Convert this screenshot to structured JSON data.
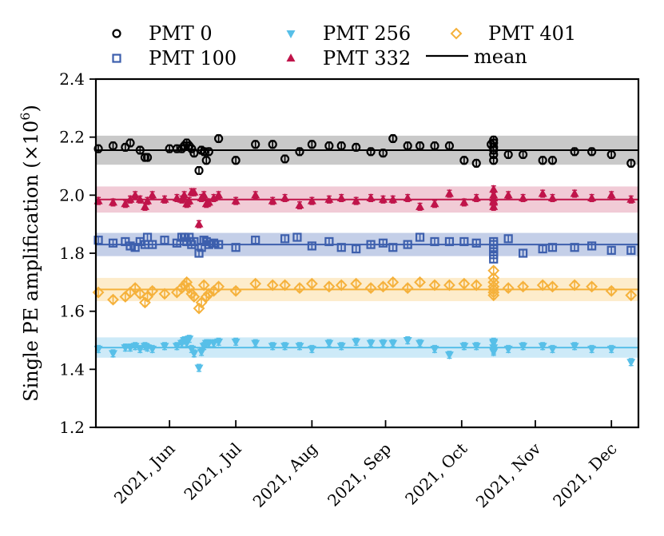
{
  "chart_data": {
    "type": "scatter",
    "ylabel_main": "Single PE amplification (×10",
    "ylabel_exp": "6",
    "ylabel_close": ")",
    "xlabel": "",
    "ylim": [
      1.2,
      2.4
    ],
    "yticks": [
      "1.2",
      "1.4",
      "1.6",
      "1.8",
      "2.0",
      "2.2",
      "2.4"
    ],
    "x_start": 0,
    "x_end": 221,
    "x_tick_positions": [
      30,
      57,
      88,
      118,
      149,
      179,
      210
    ],
    "x_tick_labels": [
      "2021, Jun",
      "2021, Jul",
      "2021, Aug",
      "2021, Sep",
      "2021, Oct",
      "2021, Nov",
      "2021, Dec"
    ],
    "legend_mean_label": "mean",
    "series": [
      {
        "name": "PMT 0",
        "marker": "circle",
        "color": "#000000",
        "band_color": "#c9c9c9",
        "mean": 2.155,
        "band": [
          2.105,
          2.205
        ],
        "err": 0.013,
        "days": [
          1,
          7,
          12,
          14,
          18,
          20,
          21,
          30,
          33,
          35,
          36,
          37,
          38,
          39,
          40,
          42,
          43,
          44,
          45,
          46,
          50,
          57,
          65,
          72,
          77,
          83,
          88,
          95,
          100,
          106,
          112,
          117,
          121,
          127,
          132,
          138,
          144,
          150,
          155,
          161,
          162,
          162,
          162,
          162,
          162,
          162,
          168,
          174,
          182,
          186,
          195,
          202,
          210,
          218
        ],
        "values": [
          2.16,
          2.17,
          2.165,
          2.18,
          2.155,
          2.13,
          2.13,
          2.16,
          2.16,
          2.16,
          2.17,
          2.18,
          2.17,
          2.16,
          2.145,
          2.085,
          2.155,
          2.15,
          2.12,
          2.15,
          2.195,
          2.12,
          2.175,
          2.175,
          2.125,
          2.15,
          2.175,
          2.17,
          2.17,
          2.165,
          2.15,
          2.145,
          2.195,
          2.17,
          2.17,
          2.17,
          2.17,
          2.12,
          2.11,
          2.175,
          2.19,
          2.18,
          2.165,
          2.155,
          2.14,
          2.12,
          2.14,
          2.14,
          2.12,
          2.12,
          2.15,
          2.15,
          2.14,
          2.11
        ]
      },
      {
        "name": "PMT 100",
        "marker": "square",
        "color": "#3d5fad",
        "band_color": "#c4cfe8",
        "mean": 1.83,
        "band": [
          1.79,
          1.87
        ],
        "err": 0.012,
        "days": [
          1,
          7,
          12,
          14,
          16,
          18,
          20,
          21,
          23,
          28,
          33,
          35,
          36,
          37,
          38,
          39,
          40,
          42,
          43,
          44,
          45,
          46,
          48,
          50,
          57,
          65,
          77,
          82,
          88,
          95,
          100,
          106,
          112,
          117,
          121,
          127,
          132,
          138,
          144,
          150,
          155,
          162,
          162,
          162,
          162,
          162,
          162,
          168,
          174,
          182,
          186,
          195,
          202,
          210,
          218
        ],
        "values": [
          1.845,
          1.835,
          1.84,
          1.825,
          1.82,
          1.84,
          1.83,
          1.855,
          1.83,
          1.845,
          1.835,
          1.855,
          1.855,
          1.84,
          1.855,
          1.83,
          1.84,
          1.8,
          1.82,
          1.845,
          1.84,
          1.83,
          1.835,
          1.83,
          1.82,
          1.845,
          1.85,
          1.855,
          1.825,
          1.84,
          1.82,
          1.815,
          1.83,
          1.835,
          1.82,
          1.83,
          1.855,
          1.84,
          1.84,
          1.84,
          1.835,
          1.84,
          1.83,
          1.815,
          1.805,
          1.795,
          1.78,
          1.85,
          1.8,
          1.815,
          1.82,
          1.82,
          1.825,
          1.81,
          1.81
        ]
      },
      {
        "name": "PMT 256",
        "marker": "triangle-down",
        "color": "#57bfe8",
        "band_color": "#cdeaf8",
        "mean": 1.475,
        "band": [
          1.44,
          1.51
        ],
        "err": 0.012,
        "days": [
          1,
          7,
          12,
          14,
          16,
          18,
          20,
          21,
          23,
          28,
          33,
          35,
          36,
          37,
          38,
          39,
          40,
          42,
          43,
          44,
          45,
          46,
          48,
          50,
          57,
          65,
          72,
          77,
          83,
          88,
          95,
          100,
          106,
          112,
          117,
          121,
          127,
          132,
          138,
          144,
          150,
          155,
          162,
          162,
          162,
          162,
          162,
          168,
          174,
          182,
          186,
          195,
          202,
          210,
          218
        ],
        "values": [
          1.47,
          1.455,
          1.475,
          1.475,
          1.48,
          1.47,
          1.48,
          1.475,
          1.47,
          1.48,
          1.48,
          1.49,
          1.5,
          1.49,
          1.505,
          1.47,
          1.455,
          1.405,
          1.46,
          1.48,
          1.49,
          1.49,
          1.49,
          1.495,
          1.495,
          1.49,
          1.48,
          1.48,
          1.48,
          1.47,
          1.49,
          1.48,
          1.495,
          1.49,
          1.49,
          1.49,
          1.5,
          1.49,
          1.47,
          1.45,
          1.48,
          1.48,
          1.495,
          1.49,
          1.475,
          1.465,
          1.46,
          1.47,
          1.48,
          1.48,
          1.47,
          1.48,
          1.47,
          1.47,
          1.425
        ]
      },
      {
        "name": "PMT 332",
        "marker": "triangle-up",
        "color": "#c0144a",
        "band_color": "#f1cbd6",
        "mean": 1.985,
        "band": [
          1.94,
          2.03
        ],
        "err": 0.012,
        "days": [
          1,
          7,
          12,
          14,
          16,
          18,
          20,
          21,
          23,
          28,
          33,
          35,
          36,
          37,
          38,
          39,
          40,
          42,
          43,
          44,
          45,
          46,
          48,
          50,
          57,
          65,
          72,
          77,
          83,
          88,
          95,
          100,
          106,
          112,
          117,
          121,
          127,
          132,
          138,
          144,
          150,
          155,
          162,
          162,
          162,
          162,
          162,
          162,
          168,
          174,
          182,
          186,
          195,
          202,
          210,
          218
        ],
        "values": [
          1.98,
          1.975,
          1.97,
          1.985,
          2.0,
          1.985,
          1.96,
          1.98,
          2.0,
          1.985,
          1.99,
          1.985,
          2.0,
          1.97,
          1.98,
          2.01,
          2.01,
          1.9,
          1.99,
          2.0,
          1.97,
          1.975,
          1.99,
          2.0,
          1.98,
          2.0,
          1.98,
          1.99,
          1.965,
          1.98,
          1.985,
          1.99,
          1.98,
          1.99,
          1.985,
          1.985,
          1.99,
          1.96,
          1.97,
          2.005,
          1.975,
          1.99,
          2.02,
          2.0,
          1.99,
          1.98,
          1.975,
          1.96,
          2.0,
          1.99,
          2.005,
          1.99,
          2.005,
          1.99,
          2.0,
          1.985
        ]
      },
      {
        "name": "PMT 401",
        "marker": "diamond",
        "color": "#f5b13b",
        "band_color": "#fdeccb",
        "mean": 1.675,
        "band": [
          1.635,
          1.715
        ],
        "err": 0.012,
        "days": [
          1,
          7,
          12,
          14,
          16,
          18,
          20,
          21,
          23,
          28,
          33,
          35,
          36,
          37,
          38,
          39,
          40,
          42,
          43,
          44,
          45,
          46,
          48,
          50,
          57,
          65,
          72,
          77,
          83,
          88,
          95,
          100,
          106,
          112,
          117,
          121,
          127,
          132,
          138,
          144,
          150,
          155,
          162,
          162,
          162,
          162,
          162,
          162,
          162,
          168,
          174,
          182,
          186,
          195,
          202,
          210,
          218
        ],
        "values": [
          1.665,
          1.64,
          1.65,
          1.665,
          1.68,
          1.66,
          1.63,
          1.65,
          1.67,
          1.66,
          1.665,
          1.68,
          1.69,
          1.7,
          1.68,
          1.66,
          1.65,
          1.61,
          1.63,
          1.69,
          1.65,
          1.66,
          1.67,
          1.685,
          1.67,
          1.695,
          1.69,
          1.69,
          1.68,
          1.695,
          1.685,
          1.69,
          1.695,
          1.68,
          1.685,
          1.7,
          1.68,
          1.7,
          1.69,
          1.69,
          1.695,
          1.69,
          1.74,
          1.715,
          1.7,
          1.685,
          1.675,
          1.665,
          1.655,
          1.68,
          1.685,
          1.69,
          1.685,
          1.69,
          1.685,
          1.67,
          1.655
        ]
      }
    ]
  }
}
